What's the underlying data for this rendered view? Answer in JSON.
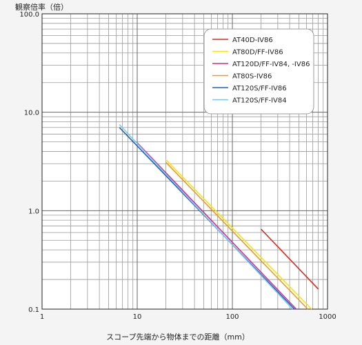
{
  "chart_data": {
    "type": "line",
    "title": "",
    "xlabel": "スコープ先端から物体までの距離（mm）",
    "ylabel": "観察倍率（倍）",
    "x_scale": "log",
    "y_scale": "log",
    "xlim": [
      1,
      1000
    ],
    "ylim": [
      0.1,
      100
    ],
    "x_ticks": [
      {
        "value": 1,
        "label": "1"
      },
      {
        "value": 10,
        "label": "10"
      },
      {
        "value": 100,
        "label": "100"
      },
      {
        "value": 1000,
        "label": "1000"
      }
    ],
    "y_ticks": [
      {
        "value": 0.1,
        "label": "0.1"
      },
      {
        "value": 1,
        "label": "1.0"
      },
      {
        "value": 10,
        "label": "10.0"
      },
      {
        "value": 100,
        "label": "100.0"
      }
    ],
    "grid": true,
    "legend_position": "top-right",
    "series": [
      {
        "name": "AT40D-IV86",
        "color": "#d42a1e",
        "points": [
          [
            200,
            0.65
          ],
          [
            800,
            0.16
          ]
        ]
      },
      {
        "name": "AT80D/FF-IV86",
        "color": "#f2e21a",
        "points": [
          [
            20,
            3.3
          ],
          [
            680,
            0.1
          ]
        ]
      },
      {
        "name": "AT120D/FF-IV84, -IV86",
        "color": "#c8348c",
        "points": [
          [
            10,
            4.9
          ],
          [
            470,
            0.1
          ]
        ]
      },
      {
        "name": "AT80S-IV86",
        "color": "#e99a2c",
        "points": [
          [
            20,
            3.1
          ],
          [
            620,
            0.1
          ]
        ]
      },
      {
        "name": "AT120S/FF-IV86",
        "color": "#1f5fb8",
        "points": [
          [
            6.5,
            7.0
          ],
          [
            450,
            0.1
          ]
        ]
      },
      {
        "name": "AT120S/FF-IV84",
        "color": "#7fc4ee",
        "points": [
          [
            6.5,
            7.5
          ],
          [
            430,
            0.1
          ]
        ]
      }
    ]
  }
}
